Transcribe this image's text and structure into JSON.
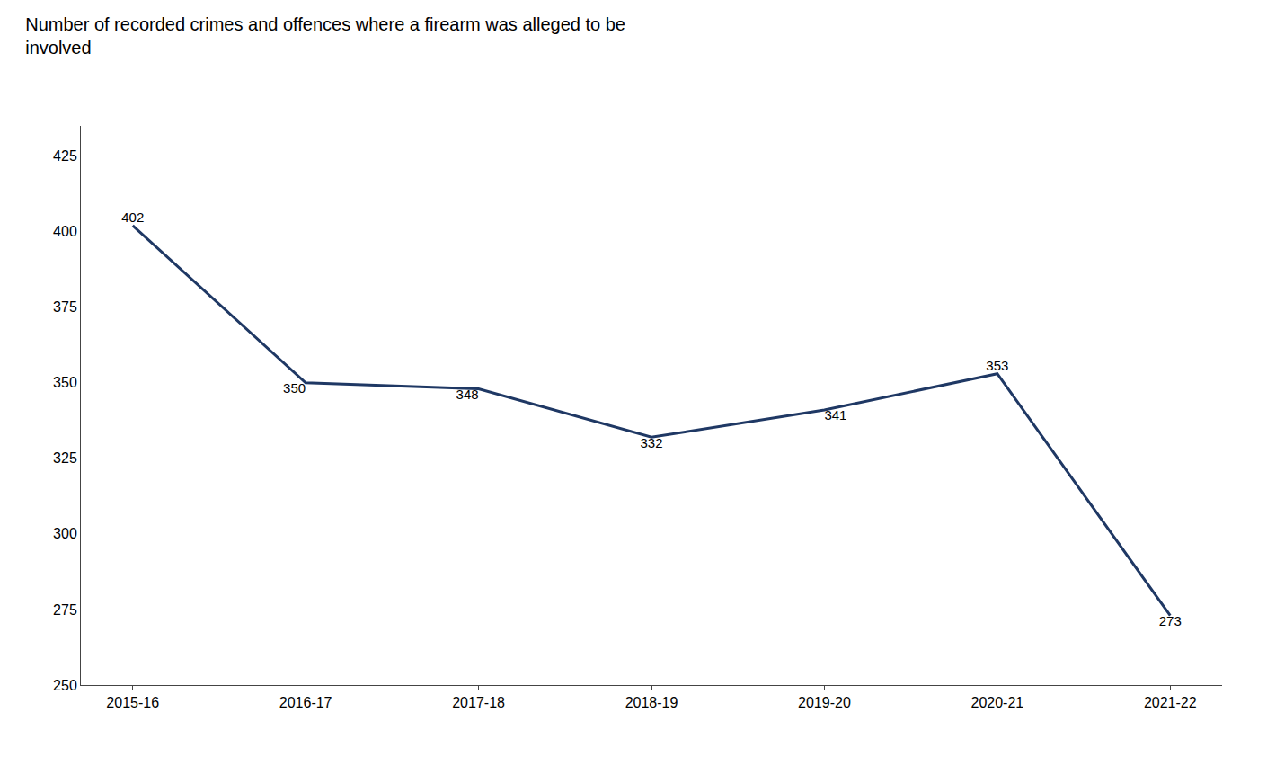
{
  "chart_data": {
    "type": "line",
    "title": "Number of recorded crimes and offences where a firearm was alleged to be\ninvolved",
    "categories": [
      "2015-16",
      "2016-17",
      "2017-18",
      "2018-19",
      "2019-20",
      "2020-21",
      "2021-22"
    ],
    "values": [
      402,
      350,
      348,
      332,
      341,
      353,
      273
    ],
    "color": "#1f3864",
    "ylim": [
      250,
      435
    ],
    "yticks": [
      250,
      275,
      300,
      325,
      350,
      375,
      400,
      425
    ],
    "grid": false,
    "data_labels": true
  }
}
